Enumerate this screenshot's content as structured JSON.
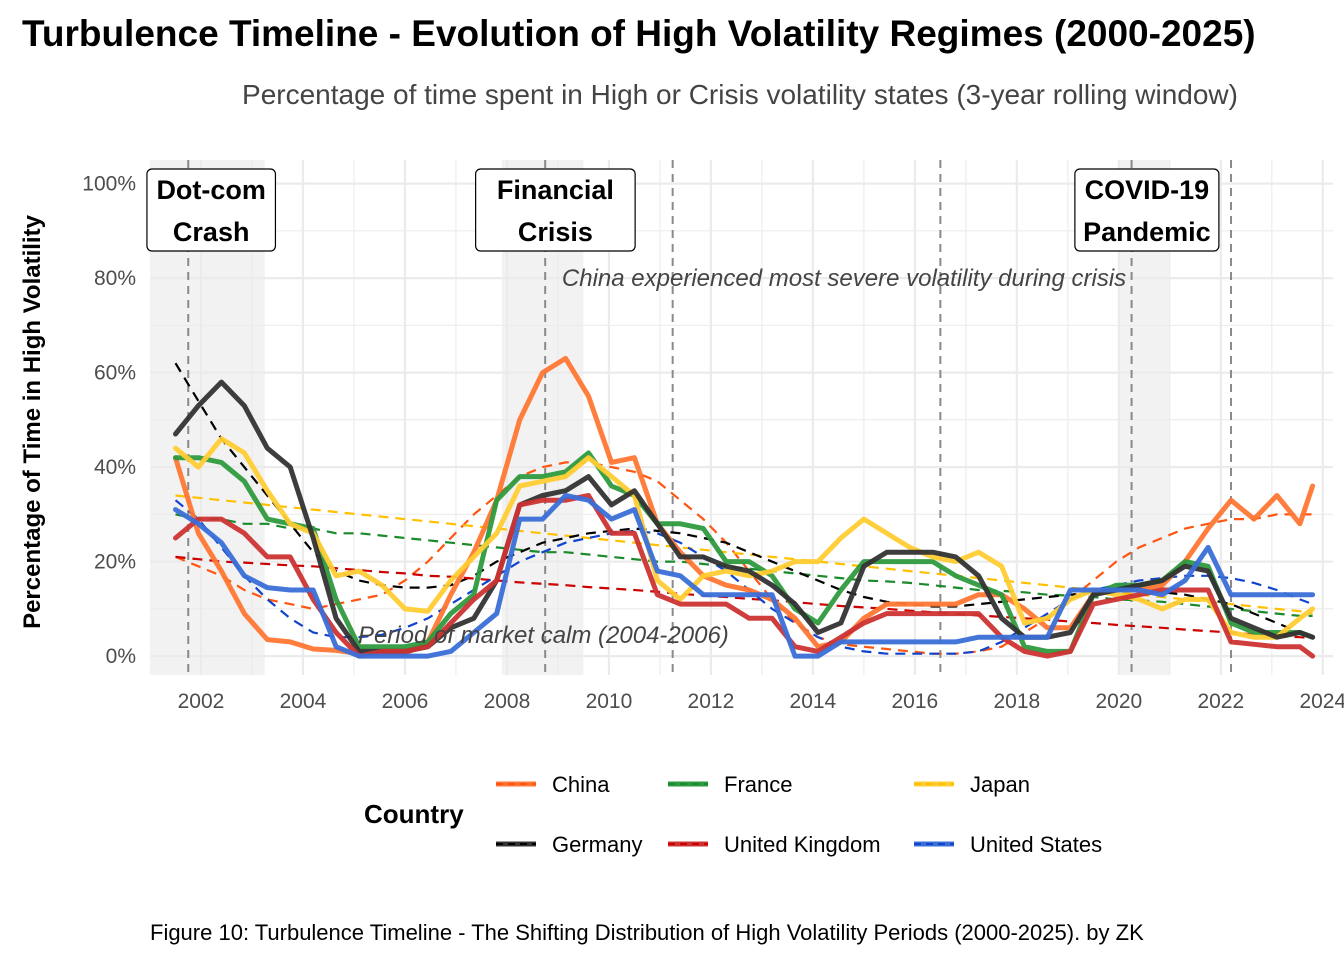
{
  "chart_data": {
    "type": "line",
    "title": "Turbulence Timeline - Evolution of High Volatility Regimes (2000-2025)",
    "subtitle": "Percentage of time spent in High or Crisis volatility states (3-year rolling window)",
    "xlabel": "",
    "ylabel": "Percentage of Time in High Volatility",
    "caption": "Figure 10: Turbulence Timeline - The Shifting Distribution of High Volatility Periods (2000-2025). by ZK",
    "xlim": [
      2001.0,
      2024.2
    ],
    "ylim": [
      -0.04,
      1.05
    ],
    "x_ticks": [
      2002,
      2004,
      2006,
      2008,
      2010,
      2012,
      2014,
      2016,
      2018,
      2020,
      2022,
      2024
    ],
    "x_tick_labels": [
      "2002",
      "2004",
      "2006",
      "2008",
      "2010",
      "2012",
      "2014",
      "2016",
      "2018",
      "2020",
      "2022",
      "2024"
    ],
    "y_ticks": [
      0,
      0.2,
      0.4,
      0.6,
      0.8,
      1.0
    ],
    "y_tick_labels": [
      "0%",
      "20%",
      "40%",
      "60%",
      "80%",
      "100%"
    ],
    "grid": true,
    "legend": {
      "title": "Country",
      "position": "bottom"
    },
    "shaded_periods": [
      {
        "start": 2001.0,
        "end": 2003.25
      },
      {
        "start": 2007.9,
        "end": 2009.5
      },
      {
        "start": 2020.0,
        "end": 2021.0
      }
    ],
    "event_lines": [
      2001.75,
      2008.75,
      2011.25,
      2016.5,
      2020.25,
      2022.2
    ],
    "event_labels": [
      {
        "x": 2002.2,
        "lines": [
          "Dot-com",
          "Crash"
        ]
      },
      {
        "x": 2008.95,
        "lines": [
          "Financial",
          "Crisis"
        ]
      },
      {
        "x": 2020.55,
        "lines": [
          "COVID-19",
          "Pandemic"
        ]
      }
    ],
    "annotations": [
      {
        "text": "China experienced most severe volatility during crisis",
        "x": 2009.0,
        "y": 0.8,
        "anchor": "start"
      },
      {
        "text": "Period of market calm (2004-2006)",
        "x": 2005.0,
        "y": 0.045,
        "anchor": "start"
      }
    ],
    "x": [
      2001.5,
      2001.95,
      2002.4,
      2002.85,
      2003.3,
      2003.75,
      2004.2,
      2004.65,
      2005.1,
      2005.55,
      2006.0,
      2006.45,
      2006.9,
      2007.35,
      2007.8,
      2008.25,
      2008.7,
      2009.15,
      2009.6,
      2010.05,
      2010.5,
      2010.95,
      2011.4,
      2011.85,
      2012.3,
      2012.75,
      2013.2,
      2013.65,
      2014.1,
      2014.55,
      2015.0,
      2015.45,
      2015.9,
      2016.35,
      2016.8,
      2017.25,
      2017.7,
      2018.15,
      2018.6,
      2019.05,
      2019.5,
      2019.95,
      2020.4,
      2020.85,
      2021.3,
      2021.75,
      2022.2,
      2022.65,
      2023.1,
      2023.55,
      2023.8
    ],
    "series": [
      {
        "name": "China",
        "color": "#ff7733",
        "trend_color": "#ff5511",
        "values": [
          0.42,
          0.26,
          0.18,
          0.09,
          0.035,
          0.03,
          0.015,
          0.012,
          0.005,
          0.005,
          0.005,
          0.03,
          0.13,
          0.22,
          0.33,
          0.5,
          0.6,
          0.63,
          0.55,
          0.41,
          0.42,
          0.28,
          0.22,
          0.17,
          0.15,
          0.14,
          0.12,
          0.08,
          0.02,
          0.03,
          0.08,
          0.11,
          0.11,
          0.11,
          0.11,
          0.13,
          0.13,
          0.1,
          0.06,
          0.06,
          0.13,
          0.14,
          0.14,
          0.15,
          0.2,
          0.27,
          0.33,
          0.29,
          0.34,
          0.28,
          0.36
        ],
        "trend": [
          0.21,
          0.19,
          0.17,
          0.14,
          0.12,
          0.11,
          0.1,
          0.11,
          0.12,
          0.13,
          0.16,
          0.2,
          0.25,
          0.3,
          0.34,
          0.38,
          0.4,
          0.41,
          0.41,
          0.4,
          0.39,
          0.37,
          0.33,
          0.29,
          0.24,
          0.18,
          0.12,
          0.07,
          0.04,
          0.025,
          0.02,
          0.015,
          0.01,
          0.005,
          0.005,
          0.01,
          0.02,
          0.05,
          0.08,
          0.12,
          0.16,
          0.2,
          0.23,
          0.25,
          0.27,
          0.28,
          0.29,
          0.29,
          0.3,
          0.3,
          0.3
        ]
      },
      {
        "name": "France",
        "color": "#2e9a3e",
        "trend_color": "#1a8a2a",
        "values": [
          0.42,
          0.42,
          0.41,
          0.37,
          0.29,
          0.28,
          0.27,
          0.12,
          0.02,
          0.02,
          0.02,
          0.03,
          0.09,
          0.13,
          0.33,
          0.38,
          0.38,
          0.39,
          0.43,
          0.36,
          0.34,
          0.28,
          0.28,
          0.27,
          0.2,
          0.2,
          0.17,
          0.1,
          0.07,
          0.14,
          0.2,
          0.2,
          0.2,
          0.2,
          0.17,
          0.15,
          0.13,
          0.02,
          0.01,
          0.01,
          0.13,
          0.15,
          0.15,
          0.16,
          0.2,
          0.19,
          0.07,
          0.05,
          0.05,
          0.05,
          0.04
        ],
        "trend": [
          0.3,
          0.29,
          0.29,
          0.28,
          0.28,
          0.27,
          0.27,
          0.26,
          0.26,
          0.255,
          0.25,
          0.245,
          0.24,
          0.235,
          0.23,
          0.225,
          0.22,
          0.22,
          0.215,
          0.21,
          0.205,
          0.2,
          0.2,
          0.195,
          0.19,
          0.185,
          0.18,
          0.175,
          0.17,
          0.165,
          0.16,
          0.158,
          0.155,
          0.15,
          0.145,
          0.14,
          0.138,
          0.135,
          0.13,
          0.128,
          0.125,
          0.12,
          0.118,
          0.115,
          0.11,
          0.105,
          0.1,
          0.095,
          0.09,
          0.085,
          0.085
        ]
      },
      {
        "name": "Japan",
        "color": "#ffcc33",
        "trend_color": "#ffc000",
        "values": [
          0.44,
          0.4,
          0.46,
          0.43,
          0.35,
          0.28,
          0.26,
          0.17,
          0.18,
          0.15,
          0.1,
          0.095,
          0.16,
          0.21,
          0.26,
          0.36,
          0.37,
          0.38,
          0.42,
          0.38,
          0.34,
          0.16,
          0.12,
          0.17,
          0.18,
          0.17,
          0.18,
          0.2,
          0.2,
          0.25,
          0.29,
          0.26,
          0.23,
          0.21,
          0.2,
          0.22,
          0.19,
          0.07,
          0.08,
          0.12,
          0.14,
          0.13,
          0.12,
          0.1,
          0.12,
          0.12,
          0.05,
          0.04,
          0.04,
          0.08,
          0.1
        ],
        "trend": [
          0.34,
          0.335,
          0.33,
          0.325,
          0.32,
          0.315,
          0.31,
          0.305,
          0.3,
          0.295,
          0.29,
          0.285,
          0.28,
          0.275,
          0.27,
          0.265,
          0.26,
          0.255,
          0.25,
          0.245,
          0.24,
          0.235,
          0.23,
          0.225,
          0.22,
          0.215,
          0.21,
          0.205,
          0.2,
          0.195,
          0.19,
          0.185,
          0.18,
          0.175,
          0.17,
          0.165,
          0.16,
          0.155,
          0.15,
          0.145,
          0.14,
          0.135,
          0.13,
          0.125,
          0.12,
          0.115,
          0.11,
          0.105,
          0.1,
          0.095,
          0.09
        ]
      },
      {
        "name": "Germany",
        "color": "#333333",
        "trend_color": "#000000",
        "values": [
          0.47,
          0.53,
          0.58,
          0.53,
          0.44,
          0.4,
          0.25,
          0.08,
          0.01,
          0.01,
          0.01,
          0.02,
          0.06,
          0.08,
          0.16,
          0.32,
          0.34,
          0.35,
          0.38,
          0.32,
          0.35,
          0.28,
          0.21,
          0.21,
          0.19,
          0.18,
          0.15,
          0.11,
          0.05,
          0.07,
          0.19,
          0.22,
          0.22,
          0.22,
          0.21,
          0.17,
          0.08,
          0.04,
          0.04,
          0.05,
          0.13,
          0.14,
          0.15,
          0.16,
          0.19,
          0.18,
          0.08,
          0.06,
          0.04,
          0.05,
          0.04
        ],
        "trend": [
          0.62,
          0.54,
          0.46,
          0.4,
          0.34,
          0.28,
          0.22,
          0.18,
          0.16,
          0.15,
          0.145,
          0.145,
          0.15,
          0.17,
          0.2,
          0.22,
          0.24,
          0.25,
          0.26,
          0.265,
          0.27,
          0.265,
          0.26,
          0.25,
          0.24,
          0.22,
          0.2,
          0.18,
          0.16,
          0.14,
          0.125,
          0.115,
          0.11,
          0.105,
          0.105,
          0.11,
          0.115,
          0.12,
          0.125,
          0.13,
          0.135,
          0.14,
          0.14,
          0.135,
          0.13,
          0.12,
          0.11,
          0.09,
          0.07,
          0.05,
          0.04
        ]
      },
      {
        "name": "United Kingdom",
        "color": "#cc3333",
        "trend_color": "#cc0000",
        "values": [
          0.25,
          0.29,
          0.29,
          0.26,
          0.21,
          0.21,
          0.12,
          0.05,
          0.0,
          0.01,
          0.01,
          0.02,
          0.07,
          0.12,
          0.16,
          0.32,
          0.33,
          0.33,
          0.34,
          0.26,
          0.26,
          0.13,
          0.11,
          0.11,
          0.11,
          0.08,
          0.08,
          0.02,
          0.01,
          0.04,
          0.07,
          0.09,
          0.09,
          0.09,
          0.09,
          0.09,
          0.04,
          0.01,
          0.0,
          0.01,
          0.11,
          0.12,
          0.13,
          0.14,
          0.14,
          0.14,
          0.03,
          0.025,
          0.02,
          0.02,
          0.0
        ],
        "trend": [
          0.21,
          0.205,
          0.2,
          0.198,
          0.195,
          0.192,
          0.19,
          0.186,
          0.182,
          0.178,
          0.175,
          0.17,
          0.168,
          0.164,
          0.16,
          0.156,
          0.153,
          0.15,
          0.146,
          0.143,
          0.14,
          0.136,
          0.132,
          0.128,
          0.125,
          0.121,
          0.118,
          0.114,
          0.11,
          0.106,
          0.103,
          0.1,
          0.096,
          0.093,
          0.09,
          0.086,
          0.083,
          0.08,
          0.077,
          0.073,
          0.07,
          0.066,
          0.063,
          0.06,
          0.056,
          0.053,
          0.05,
          0.046,
          0.043,
          0.04,
          0.038
        ]
      },
      {
        "name": "United States",
        "color": "#3a6fd8",
        "trend_color": "#1144cc",
        "values": [
          0.31,
          0.28,
          0.24,
          0.17,
          0.145,
          0.14,
          0.14,
          0.02,
          0.0,
          0.0,
          0.0,
          0.0,
          0.01,
          0.05,
          0.09,
          0.29,
          0.29,
          0.34,
          0.33,
          0.29,
          0.31,
          0.18,
          0.17,
          0.13,
          0.13,
          0.13,
          0.13,
          0.0,
          0.0,
          0.03,
          0.03,
          0.03,
          0.03,
          0.03,
          0.03,
          0.04,
          0.04,
          0.04,
          0.04,
          0.14,
          0.14,
          0.14,
          0.14,
          0.13,
          0.16,
          0.23,
          0.13,
          0.13,
          0.13,
          0.13,
          0.13
        ],
        "trend": [
          0.33,
          0.29,
          0.23,
          0.17,
          0.12,
          0.08,
          0.05,
          0.04,
          0.04,
          0.045,
          0.06,
          0.08,
          0.11,
          0.14,
          0.17,
          0.2,
          0.22,
          0.24,
          0.25,
          0.26,
          0.265,
          0.26,
          0.24,
          0.21,
          0.18,
          0.14,
          0.1,
          0.07,
          0.04,
          0.02,
          0.01,
          0.005,
          0.005,
          0.005,
          0.005,
          0.01,
          0.03,
          0.06,
          0.09,
          0.12,
          0.14,
          0.15,
          0.16,
          0.165,
          0.17,
          0.17,
          0.165,
          0.155,
          0.14,
          0.12,
          0.11
        ]
      }
    ]
  }
}
